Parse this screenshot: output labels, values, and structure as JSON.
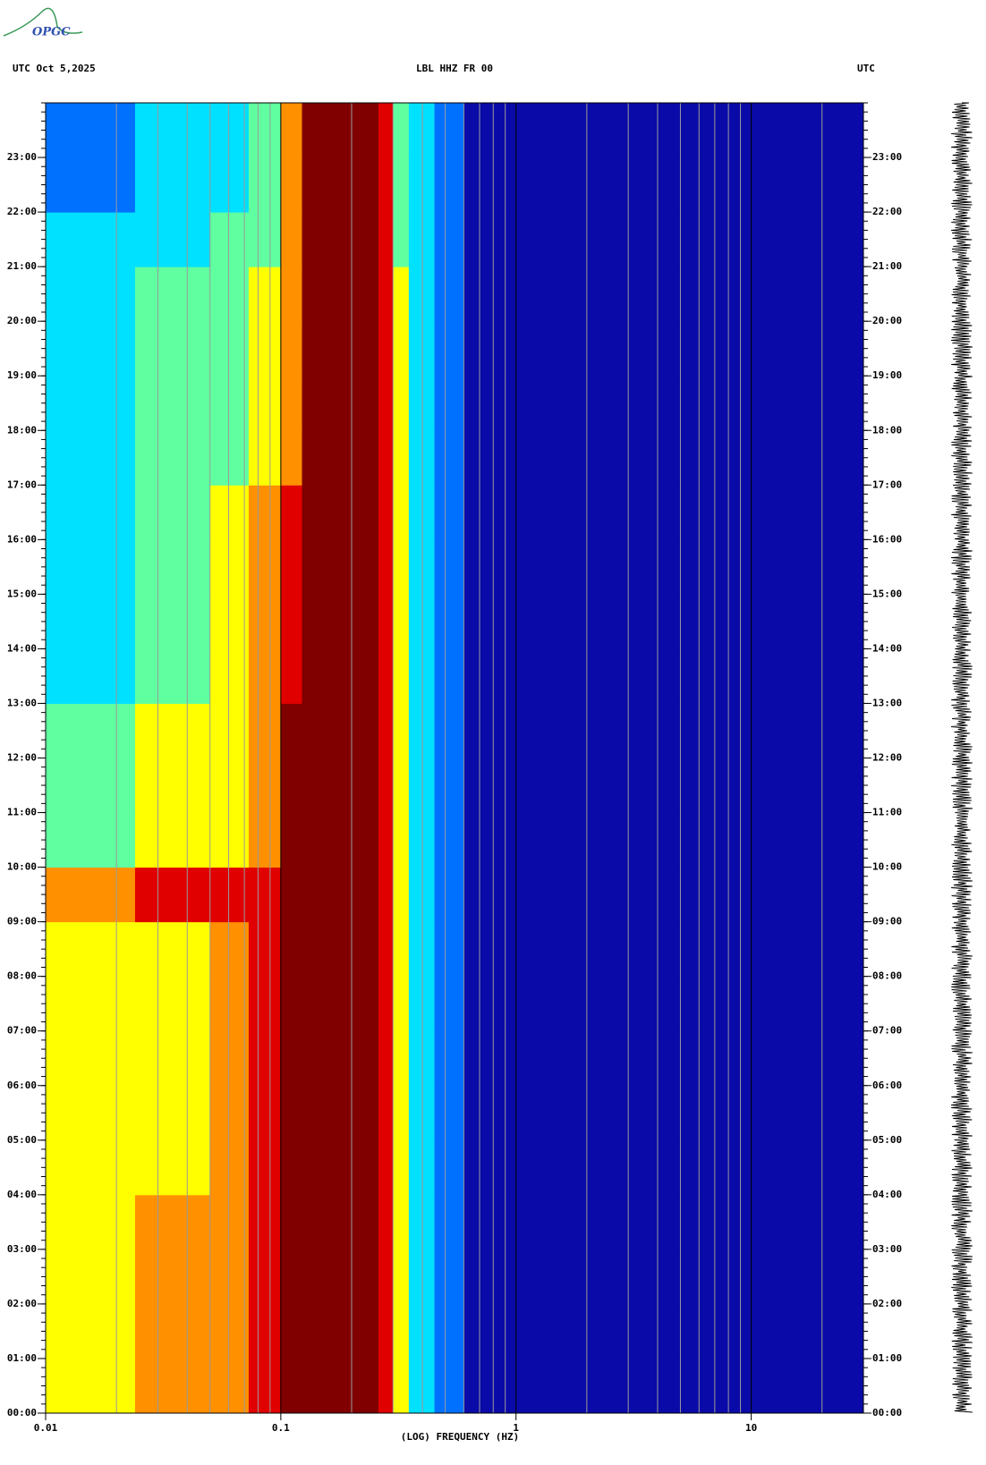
{
  "logo": "OPGC",
  "chart_data": {
    "type": "spectrogram",
    "date_label": "UTC  Oct 5,2025",
    "title": "LBL HHZ FR 00",
    "right_label": "UTC",
    "x_label": "(LOG) FREQUENCY (HZ)",
    "xlog": true,
    "xlim": [
      0.01,
      30
    ],
    "xticks": [
      0.01,
      0.1,
      1,
      10
    ],
    "xminor": [
      0.02,
      0.03,
      0.04,
      0.05,
      0.06,
      0.07,
      0.08,
      0.09,
      0.2,
      0.3,
      0.4,
      0.5,
      0.6,
      0.7,
      0.8,
      0.9,
      2,
      3,
      4,
      5,
      6,
      7,
      8,
      9,
      20
    ],
    "ylim": [
      0,
      24
    ],
    "yticks": [
      {
        "value": 0,
        "label": "00:00"
      },
      {
        "value": 1,
        "label": "01:00"
      },
      {
        "value": 2,
        "label": "02:00"
      },
      {
        "value": 3,
        "label": "03:00"
      },
      {
        "value": 4,
        "label": "04:00"
      },
      {
        "value": 5,
        "label": "05:00"
      },
      {
        "value": 6,
        "label": "06:00"
      },
      {
        "value": 7,
        "label": "07:00"
      },
      {
        "value": 8,
        "label": "08:00"
      },
      {
        "value": 9,
        "label": "09:00"
      },
      {
        "value": 10,
        "label": "10:00"
      },
      {
        "value": 11,
        "label": "11:00"
      },
      {
        "value": 12,
        "label": "12:00"
      },
      {
        "value": 13,
        "label": "13:00"
      },
      {
        "value": 14,
        "label": "14:00"
      },
      {
        "value": 15,
        "label": "15:00"
      },
      {
        "value": 16,
        "label": "16:00"
      },
      {
        "value": 17,
        "label": "17:00"
      },
      {
        "value": 18,
        "label": "18:00"
      },
      {
        "value": 19,
        "label": "19:00"
      },
      {
        "value": 20,
        "label": "20:00"
      },
      {
        "value": 21,
        "label": "21:00"
      },
      {
        "value": 22,
        "label": "22:00"
      },
      {
        "value": 23,
        "label": "23:00"
      }
    ],
    "colormap": [
      "#0a0aa8",
      "#0020e0",
      "#0070ff",
      "#00e0ff",
      "#60ffa0",
      "#ffff00",
      "#ff9000",
      "#e00000",
      "#800000"
    ],
    "freq_edges": [
      0.01,
      0.024,
      0.05,
      0.073,
      0.1,
      0.123,
      0.26,
      0.3,
      0.35,
      0.45,
      0.6,
      30
    ],
    "levels": [
      [
        5,
        6,
        6,
        7,
        8,
        8,
        7,
        5,
        3,
        2,
        0
      ],
      [
        5,
        6,
        6,
        7,
        8,
        8,
        7,
        5,
        3,
        2,
        0
      ],
      [
        5,
        6,
        6,
        7,
        8,
        8,
        7,
        5,
        3,
        2,
        0
      ],
      [
        5,
        6,
        6,
        7,
        8,
        8,
        7,
        5,
        3,
        2,
        0
      ],
      [
        5,
        5,
        6,
        7,
        8,
        8,
        7,
        5,
        3,
        2,
        0
      ],
      [
        5,
        5,
        6,
        7,
        8,
        8,
        7,
        5,
        3,
        2,
        0
      ],
      [
        5,
        5,
        6,
        7,
        8,
        8,
        7,
        5,
        3,
        2,
        0
      ],
      [
        5,
        5,
        6,
        7,
        8,
        8,
        7,
        5,
        3,
        2,
        0
      ],
      [
        5,
        5,
        6,
        7,
        8,
        8,
        7,
        5,
        3,
        2,
        0
      ],
      [
        6,
        7,
        7,
        7,
        8,
        8,
        7,
        5,
        3,
        2,
        0
      ],
      [
        4,
        5,
        5,
        6,
        8,
        8,
        7,
        5,
        3,
        2,
        0
      ],
      [
        4,
        5,
        5,
        6,
        8,
        8,
        7,
        5,
        3,
        2,
        0
      ],
      [
        4,
        5,
        5,
        6,
        8,
        8,
        7,
        5,
        3,
        2,
        0
      ],
      [
        3,
        4,
        5,
        6,
        7,
        8,
        7,
        5,
        3,
        2,
        0
      ],
      [
        3,
        4,
        5,
        6,
        7,
        8,
        7,
        5,
        3,
        2,
        0
      ],
      [
        3,
        4,
        5,
        6,
        7,
        8,
        7,
        5,
        3,
        2,
        0
      ],
      [
        3,
        4,
        5,
        6,
        7,
        8,
        7,
        5,
        3,
        2,
        0
      ],
      [
        3,
        4,
        4,
        5,
        6,
        8,
        7,
        5,
        3,
        2,
        0
      ],
      [
        3,
        4,
        4,
        5,
        6,
        8,
        7,
        5,
        3,
        2,
        0
      ],
      [
        3,
        4,
        4,
        5,
        6,
        8,
        7,
        5,
        3,
        2,
        0
      ],
      [
        3,
        4,
        4,
        5,
        6,
        8,
        7,
        5,
        3,
        2,
        0
      ],
      [
        3,
        3,
        4,
        4,
        6,
        8,
        7,
        4,
        3,
        2,
        0
      ],
      [
        2,
        3,
        3,
        4,
        6,
        8,
        7,
        4,
        3,
        2,
        0
      ],
      [
        2,
        3,
        3,
        4,
        6,
        8,
        7,
        4,
        3,
        2,
        0
      ]
    ]
  }
}
